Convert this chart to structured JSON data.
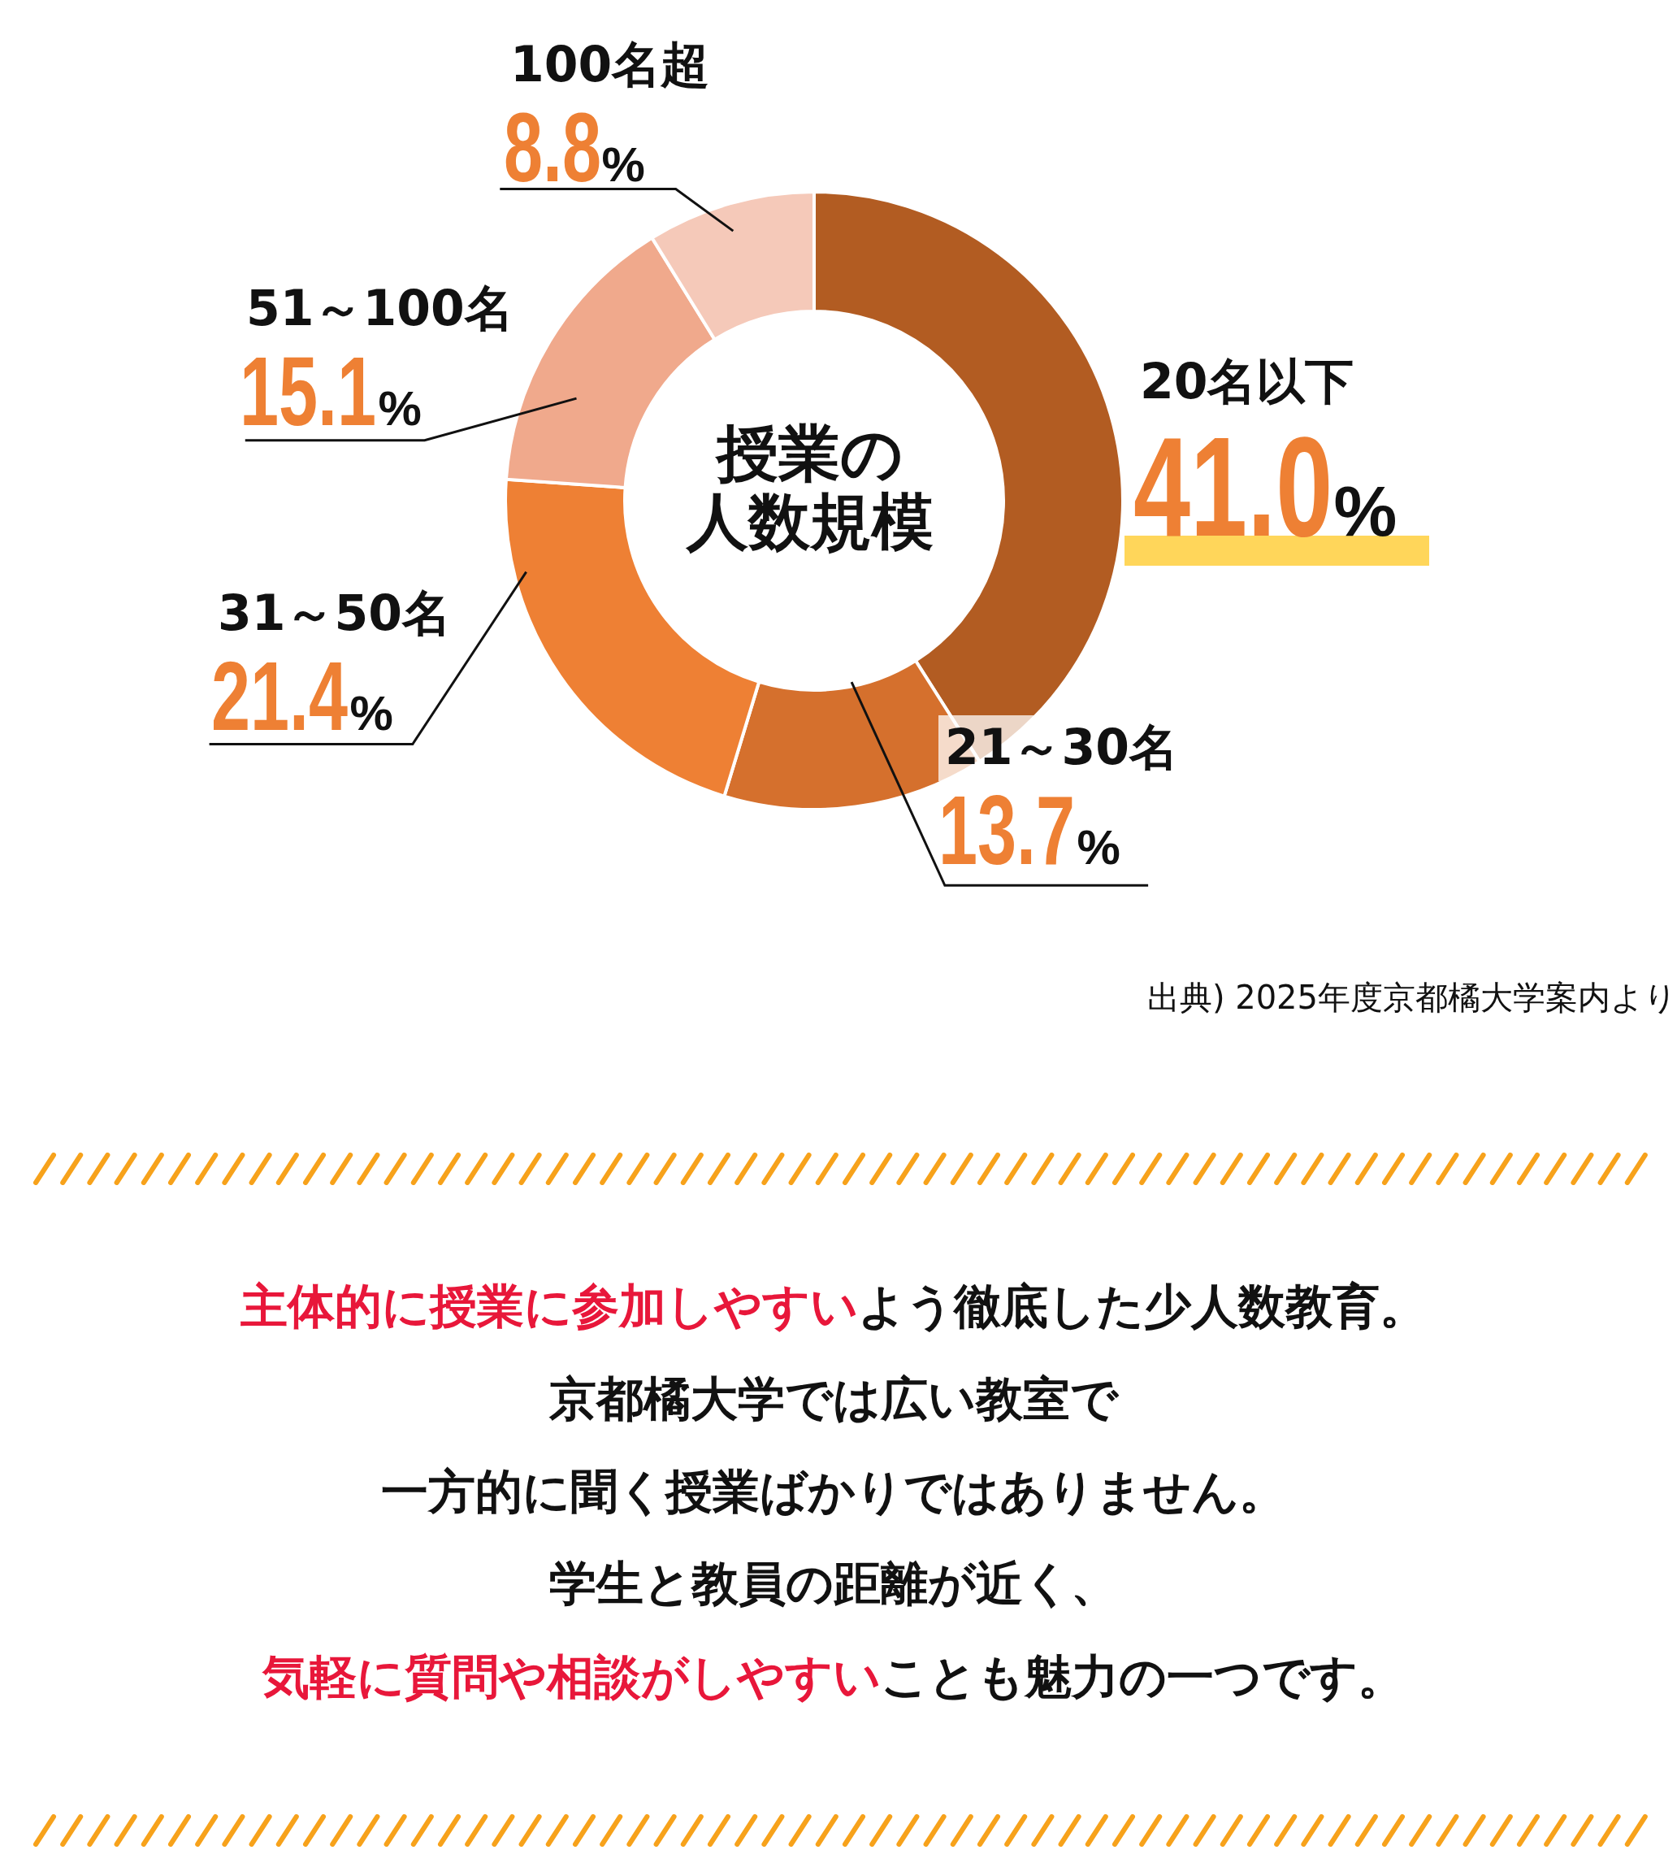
{
  "chart_data": {
    "type": "donut",
    "title": "授業の人数規模",
    "categories": [
      "20名以下",
      "21～30名",
      "31～50名",
      "51～100名",
      "100名超"
    ],
    "values": [
      41.0,
      13.7,
      21.4,
      15.1,
      8.8
    ],
    "colors": [
      "#b25c22",
      "#d5702d",
      "#ee8034",
      "#f0a98c",
      "#f5c9b9"
    ],
    "value_labels": [
      "41.0%",
      "13.7%",
      "21.4%",
      "15.1%",
      "8.8%"
    ],
    "annotations": [
      "出典) 2025年度京都橘大学案内より",
      "主体的に授業に参加しやすい",
      "よう徹底した少人数教育。",
      "京都橘大学では広い教室で",
      "一方的に聞く授業ばかりではありません。",
      "学生と教員の距離が近く、",
      "気軽に質問や相談がしやすい",
      "ことも魅力の一つです。"
    ]
  }
}
